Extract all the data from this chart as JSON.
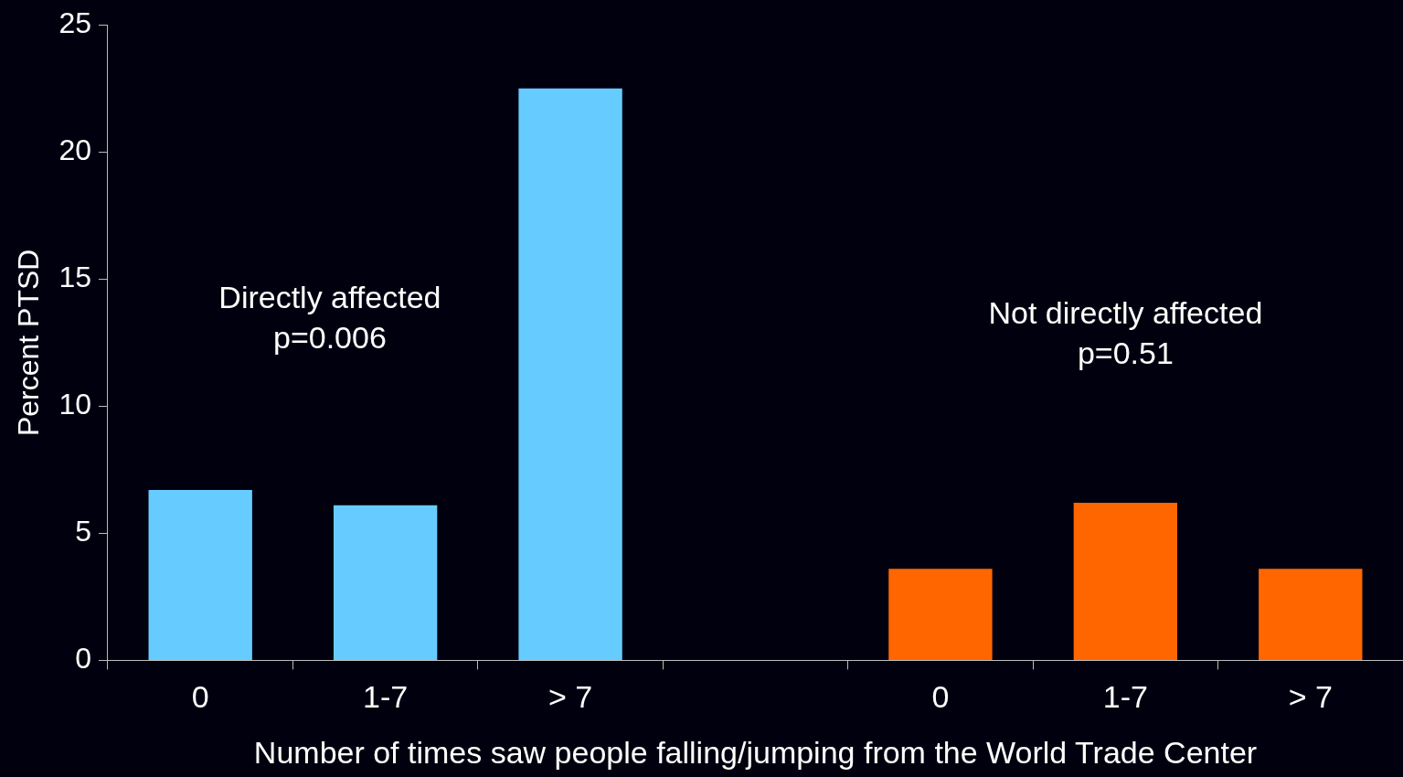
{
  "chart_data": {
    "type": "bar",
    "xlabel": "Number of times saw people falling/jumping from the World Trade Center",
    "ylabel": "Percent PTSD",
    "categories": [
      "0",
      "1-7",
      "> 7",
      null,
      "0",
      "1-7",
      "> 7"
    ],
    "values": [
      6.7,
      6.1,
      22.5,
      null,
      3.6,
      6.2,
      3.6
    ],
    "colors": [
      "#66ccff",
      "#66ccff",
      "#66ccff",
      null,
      "#ff6600",
      "#ff6600",
      "#ff6600"
    ],
    "ylim": [
      0,
      25
    ],
    "yticks": [
      0,
      5,
      10,
      15,
      20,
      25
    ],
    "grid": false,
    "legend": false,
    "annotations": [
      "Directly affected\np=0.006",
      "Not directly affected\np=0.51"
    ]
  }
}
